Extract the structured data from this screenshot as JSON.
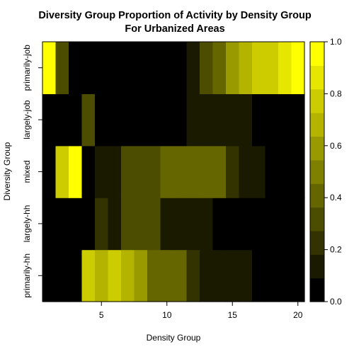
{
  "chart_data": {
    "type": "heatmap",
    "title": "Diversity Group Proportion of Activity by Density Group",
    "subtitle": "For Urbanized Areas",
    "xlabel": "Density Group",
    "ylabel": "Diversity Group",
    "x_categories": [
      1,
      2,
      3,
      4,
      5,
      6,
      7,
      8,
      9,
      10,
      11,
      12,
      13,
      14,
      15,
      16,
      17,
      18,
      19,
      20
    ],
    "x_ticks": [
      "5",
      "10",
      "15",
      "20"
    ],
    "y_categories": [
      "primarily-hh",
      "largely-hh",
      "mixed",
      "largely-job",
      "primarily-job"
    ],
    "colorbar": {
      "ticks": [
        "0.0",
        "0.2",
        "0.4",
        "0.6",
        "0.8",
        "1.0"
      ],
      "range": [
        0,
        1
      ],
      "levels": 11
    },
    "colors": {
      "low": "#000000",
      "high": "#ffff00"
    },
    "values": [
      [
        0.0,
        0.0,
        0.0,
        0.75,
        0.65,
        0.75,
        0.65,
        0.55,
        0.45,
        0.45,
        0.45,
        0.25,
        0.15,
        0.15,
        0.15,
        0.15,
        0.0,
        0.0,
        0.0,
        0.0
      ],
      [
        0.0,
        0.0,
        0.0,
        0.0,
        0.25,
        0.15,
        0.35,
        0.35,
        0.35,
        0.15,
        0.15,
        0.15,
        0.15,
        0.0,
        0.0,
        0.0,
        0.0,
        0.0,
        0.0,
        0.0
      ],
      [
        0.0,
        0.75,
        1.0,
        0.0,
        0.15,
        0.15,
        0.35,
        0.35,
        0.35,
        0.45,
        0.45,
        0.45,
        0.45,
        0.45,
        0.25,
        0.15,
        0.15,
        0.0,
        0.0,
        0.0
      ],
      [
        0.0,
        0.0,
        0.0,
        0.35,
        0.0,
        0.0,
        0.0,
        0.0,
        0.0,
        0.0,
        0.0,
        0.15,
        0.15,
        0.15,
        0.15,
        0.15,
        0.0,
        0.0,
        0.0,
        0.0
      ],
      [
        1.0,
        0.35,
        0.0,
        0.0,
        0.0,
        0.0,
        0.0,
        0.0,
        0.0,
        0.0,
        0.0,
        0.15,
        0.35,
        0.45,
        0.55,
        0.65,
        0.75,
        0.75,
        0.85,
        0.95
      ]
    ],
    "grid": false,
    "legend": "right colorbar"
  }
}
